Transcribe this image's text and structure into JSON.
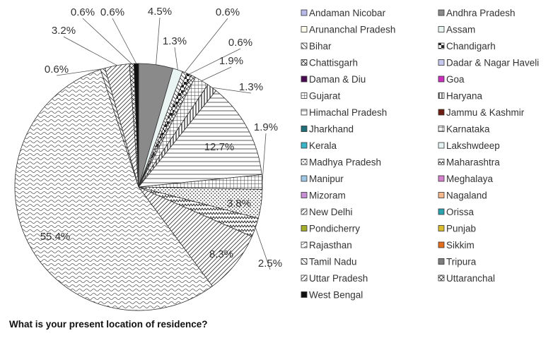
{
  "chart_data": {
    "type": "pie",
    "title": "What is your present location of residence?",
    "legend_position": "right",
    "slices": [
      {
        "name": "Andaman Nicobar",
        "value": 0.0,
        "label": ""
      },
      {
        "name": "Andhra Pradesh",
        "value": 4.5,
        "label": "4.5%"
      },
      {
        "name": "Arunanchal Pradesh",
        "value": 0.0,
        "label": ""
      },
      {
        "name": "Assam",
        "value": 1.3,
        "label": "1.3%"
      },
      {
        "name": "Bihar",
        "value": 0.6,
        "label": "0.6%"
      },
      {
        "name": "Chandigarh",
        "value": 0.6,
        "label": "0.6%"
      },
      {
        "name": "Chattisgarh",
        "value": 0.6,
        "label": ""
      },
      {
        "name": "Dadar & Nagar Haveli",
        "value": 0.0,
        "label": ""
      },
      {
        "name": "Daman & Diu",
        "value": 0.0,
        "label": ""
      },
      {
        "name": "Goa",
        "value": 0.0,
        "label": ""
      },
      {
        "name": "Gujarat",
        "value": 1.9,
        "label": "1.9%"
      },
      {
        "name": "Haryana",
        "value": 1.3,
        "label": "1.3%"
      },
      {
        "name": "Himachal Pradesh",
        "value": 12.7,
        "label": "12.7%"
      },
      {
        "name": "Jammu & Kashmir",
        "value": 0.0,
        "label": ""
      },
      {
        "name": "Jharkhand",
        "value": 0.0,
        "label": ""
      },
      {
        "name": "Karnataka",
        "value": 1.9,
        "label": "1.9%"
      },
      {
        "name": "Kerala",
        "value": 0.0,
        "label": ""
      },
      {
        "name": "Lakshwdeep",
        "value": 0.0,
        "label": ""
      },
      {
        "name": "Madhya Pradesh",
        "value": 3.8,
        "label": "3.8%"
      },
      {
        "name": "Maharashtra",
        "value": 2.5,
        "label": "2.5%"
      },
      {
        "name": "Manipur",
        "value": 0.0,
        "label": ""
      },
      {
        "name": "Meghalaya",
        "value": 0.0,
        "label": ""
      },
      {
        "name": "Mizoram",
        "value": 0.0,
        "label": ""
      },
      {
        "name": "Nagaland",
        "value": 0.0,
        "label": ""
      },
      {
        "name": "New Delhi",
        "value": 8.3,
        "label": "8.3%"
      },
      {
        "name": "Orissa",
        "value": 0.0,
        "label": ""
      },
      {
        "name": "Pondicherry",
        "value": 0.0,
        "label": ""
      },
      {
        "name": "Punjab",
        "value": 0.0,
        "label": ""
      },
      {
        "name": "Rajasthan",
        "value": 55.4,
        "label": "55.4%"
      },
      {
        "name": "Sikkim",
        "value": 0.0,
        "label": ""
      },
      {
        "name": "Tamil Nadu",
        "value": 0.6,
        "label": "0.6%"
      },
      {
        "name": "Tripura",
        "value": 0.0,
        "label": ""
      },
      {
        "name": "Uttar Pradesh",
        "value": 3.2,
        "label": "3.2%"
      },
      {
        "name": "Uttaranchal",
        "value": 0.6,
        "label": "0.6%"
      },
      {
        "name": "West Bengal",
        "value": 0.6,
        "label": "0.6%"
      }
    ],
    "legend_styles": [
      {
        "fill": "#b7b9ea",
        "pattern": "solid"
      },
      {
        "fill": "#8a8a8a",
        "pattern": "solid"
      },
      {
        "fill": "#fdfbe9",
        "pattern": "solid"
      },
      {
        "fill": "#eaf4f3",
        "pattern": "solid"
      },
      {
        "fill": "#ffffff",
        "pattern": "hatch-down"
      },
      {
        "fill": "#ffffff",
        "pattern": "checker"
      },
      {
        "fill": "#ffffff",
        "pattern": "cross-diag"
      },
      {
        "fill": "#c9c8ef",
        "pattern": "solid"
      },
      {
        "fill": "#4b0b52",
        "pattern": "solid"
      },
      {
        "fill": "#cc2fc0",
        "pattern": "solid"
      },
      {
        "fill": "#ffffff",
        "pattern": "grid"
      },
      {
        "fill": "#ffffff",
        "pattern": "vertical"
      },
      {
        "fill": "#ffffff",
        "pattern": "horizontal"
      },
      {
        "fill": "#6e1d12",
        "pattern": "solid"
      },
      {
        "fill": "#1f6f78",
        "pattern": "solid"
      },
      {
        "fill": "#ffffff",
        "pattern": "grid"
      },
      {
        "fill": "#39b5c8",
        "pattern": "solid"
      },
      {
        "fill": "#e6f3f5",
        "pattern": "solid"
      },
      {
        "fill": "#ffffff",
        "pattern": "dots"
      },
      {
        "fill": "#ffffff",
        "pattern": "zigzag"
      },
      {
        "fill": "#9ec7e6",
        "pattern": "solid"
      },
      {
        "fill": "#d77fcf",
        "pattern": "solid"
      },
      {
        "fill": "#c88fd6",
        "pattern": "solid"
      },
      {
        "fill": "#f3b98c",
        "pattern": "solid"
      },
      {
        "fill": "#ffffff",
        "pattern": "hatch-up"
      },
      {
        "fill": "#2aa3b1",
        "pattern": "solid"
      },
      {
        "fill": "#a4ad2a",
        "pattern": "solid"
      },
      {
        "fill": "#d9bd2f",
        "pattern": "solid"
      },
      {
        "fill": "#ffffff",
        "pattern": "wave"
      },
      {
        "fill": "#e46d1c",
        "pattern": "solid"
      },
      {
        "fill": "#ffffff",
        "pattern": "hatch-down"
      },
      {
        "fill": "#7d7d7d",
        "pattern": "solid"
      },
      {
        "fill": "#ffffff",
        "pattern": "hatch-up"
      },
      {
        "fill": "#ffffff",
        "pattern": "cross-diag"
      },
      {
        "fill": "#111111",
        "pattern": "solid"
      }
    ]
  }
}
